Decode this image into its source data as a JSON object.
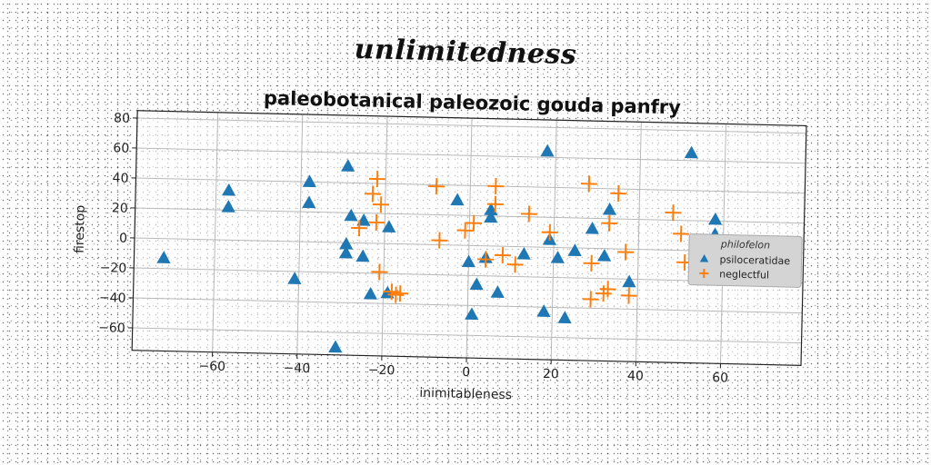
{
  "supertitle": "unlimitedness",
  "chart_data": {
    "type": "scatter",
    "title": "paleobotanical paleozoic gouda panfry",
    "xlabel": "inimitableness",
    "ylabel": "firestop",
    "xlim": [
      -79,
      79
    ],
    "ylim": [
      -75,
      85
    ],
    "xticks": [
      "−60",
      "−40",
      "−20",
      "0",
      "20",
      "40",
      "60"
    ],
    "xtick_values": [
      -60,
      -40,
      -20,
      0,
      20,
      40,
      60
    ],
    "yticks": [
      "−60",
      "−40",
      "−20",
      "0",
      "20",
      "40",
      "60",
      "80"
    ],
    "ytick_values": [
      -60,
      -40,
      -20,
      0,
      20,
      40,
      60,
      80
    ],
    "grid": true,
    "legend": {
      "title": "philofelon",
      "placement": "right"
    },
    "colors": {
      "psiloceratidae": "#1f77b4",
      "neglectful": "#ff7f0e"
    },
    "series": [
      {
        "name": "psiloceratidae",
        "marker": "triangle",
        "points": [
          [
            -72,
            -13
          ],
          [
            -57,
            33
          ],
          [
            -57,
            22
          ],
          [
            -41,
            -25
          ],
          [
            -38,
            40
          ],
          [
            -38,
            26
          ],
          [
            -29,
            51
          ],
          [
            -29,
            -1
          ],
          [
            -29,
            -7
          ],
          [
            -28,
            18
          ],
          [
            -25,
            15
          ],
          [
            -25,
            -9
          ],
          [
            -23,
            -34
          ],
          [
            -19,
            11
          ],
          [
            -19,
            -33
          ],
          [
            -31,
            -70
          ],
          [
            -3,
            30
          ],
          [
            0,
            -11
          ],
          [
            1,
            -46
          ],
          [
            2,
            -26
          ],
          [
            4,
            -8
          ],
          [
            5,
            24
          ],
          [
            5,
            19
          ],
          [
            7,
            -31
          ],
          [
            13,
            -5
          ],
          [
            18,
            64
          ],
          [
            18,
            -43
          ],
          [
            19,
            5
          ],
          [
            21,
            -7
          ],
          [
            23,
            -47
          ],
          [
            25,
            -2
          ],
          [
            29,
            13
          ],
          [
            32,
            -5
          ],
          [
            33,
            26
          ],
          [
            38,
            -22
          ],
          [
            52,
            65
          ],
          [
            58,
            21
          ],
          [
            58,
            11
          ]
        ]
      },
      {
        "name": "neglectful",
        "marker": "plus",
        "points": [
          [
            -26,
            10
          ],
          [
            -23,
            33
          ],
          [
            -22,
            43
          ],
          [
            -21,
            26
          ],
          [
            -22,
            14
          ],
          [
            -21,
            -19
          ],
          [
            -18,
            -32
          ],
          [
            -17,
            -34
          ],
          [
            -16,
            -33
          ],
          [
            -8,
            39
          ],
          [
            -7,
            3
          ],
          [
            -1,
            10
          ],
          [
            1,
            15
          ],
          [
            4,
            -9
          ],
          [
            6,
            40
          ],
          [
            6,
            28
          ],
          [
            8,
            -6
          ],
          [
            11,
            -12
          ],
          [
            14,
            22
          ],
          [
            19,
            10
          ],
          [
            28,
            43
          ],
          [
            29,
            -10
          ],
          [
            29,
            -34
          ],
          [
            32,
            -30
          ],
          [
            33,
            -27
          ],
          [
            33,
            17
          ],
          [
            35,
            37
          ],
          [
            37,
            -2
          ],
          [
            38,
            -31
          ],
          [
            48,
            25
          ],
          [
            50,
            11
          ],
          [
            51,
            -8
          ]
        ]
      }
    ]
  }
}
